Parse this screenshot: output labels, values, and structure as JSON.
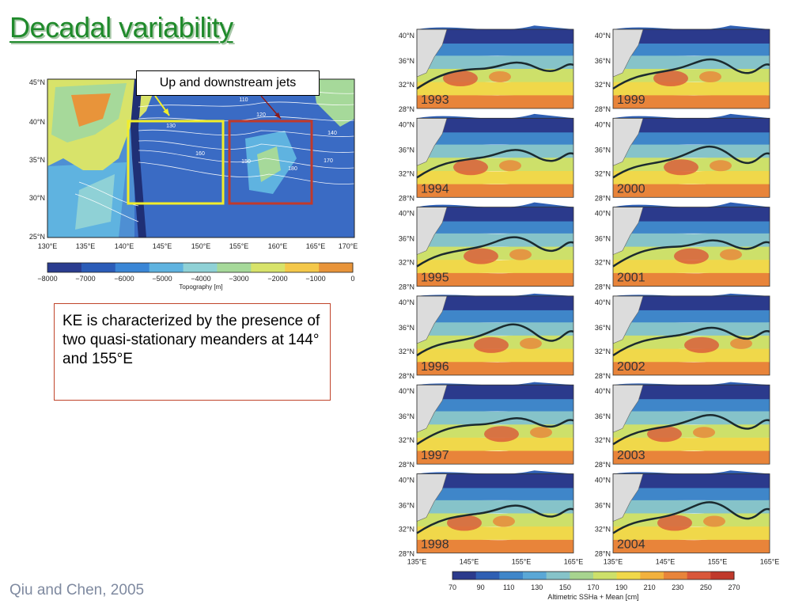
{
  "slide": {
    "title": "Decadal variability",
    "citation": "Qiu and Chen, 2005",
    "note": "KE is characterized by the presence of two quasi-stationary meanders at 144° and 155°E",
    "callout": "Up and downstream jets"
  },
  "topo_map": {
    "lat_labels": [
      "45°N",
      "40°N",
      "35°N",
      "30°N",
      "25°N"
    ],
    "lon_labels": [
      "130°E",
      "135°E",
      "140°E",
      "145°E",
      "150°E",
      "155°E",
      "160°E",
      "165°E",
      "170°E"
    ],
    "contour_labels": [
      "110",
      "120",
      "130",
      "140",
      "150",
      "160",
      "170",
      "180"
    ],
    "colorbar_ticks": [
      "−8000",
      "−7000",
      "−6000",
      "−5000",
      "−4000",
      "−3000",
      "−2000",
      "−1000",
      "0"
    ],
    "colorbar_label": "Topography [m]",
    "colorbar_colors": [
      "#2a3c8f",
      "#2b5cb8",
      "#3a86d6",
      "#5fb3e0",
      "#8fd1d6",
      "#a6d99a",
      "#d8e36a",
      "#f4c84a",
      "#e8943a"
    ],
    "box_colors": {
      "upstream": "#f2ee2a",
      "downstream": "#c0392b"
    }
  },
  "ssh_panels": {
    "years": [
      "1993",
      "1994",
      "1995",
      "1996",
      "1997",
      "1998",
      "1999",
      "2000",
      "2001",
      "2002",
      "2003",
      "2004"
    ],
    "lat_labels": [
      "40°N",
      "36°N",
      "32°N",
      "28°N"
    ],
    "lon_labels_left": [
      "135°E",
      "145°E",
      "155°E",
      "165°E"
    ],
    "lon_labels_right": [
      "135°E",
      "145°E",
      "155°E",
      "165°E"
    ],
    "colorbar_ticks": [
      "70",
      "90",
      "110",
      "130",
      "150",
      "170",
      "190",
      "210",
      "230",
      "250",
      "270"
    ],
    "colorbar_label": "Altimetric SSHa + Mean [cm]",
    "colorbar_colors": [
      "#2b3a8c",
      "#2f5fb3",
      "#3f86c9",
      "#5aa7d6",
      "#86c3c9",
      "#a7d48f",
      "#cde06a",
      "#f0d84a",
      "#f2b13d",
      "#e8843a",
      "#d9573a",
      "#c0392b"
    ]
  }
}
